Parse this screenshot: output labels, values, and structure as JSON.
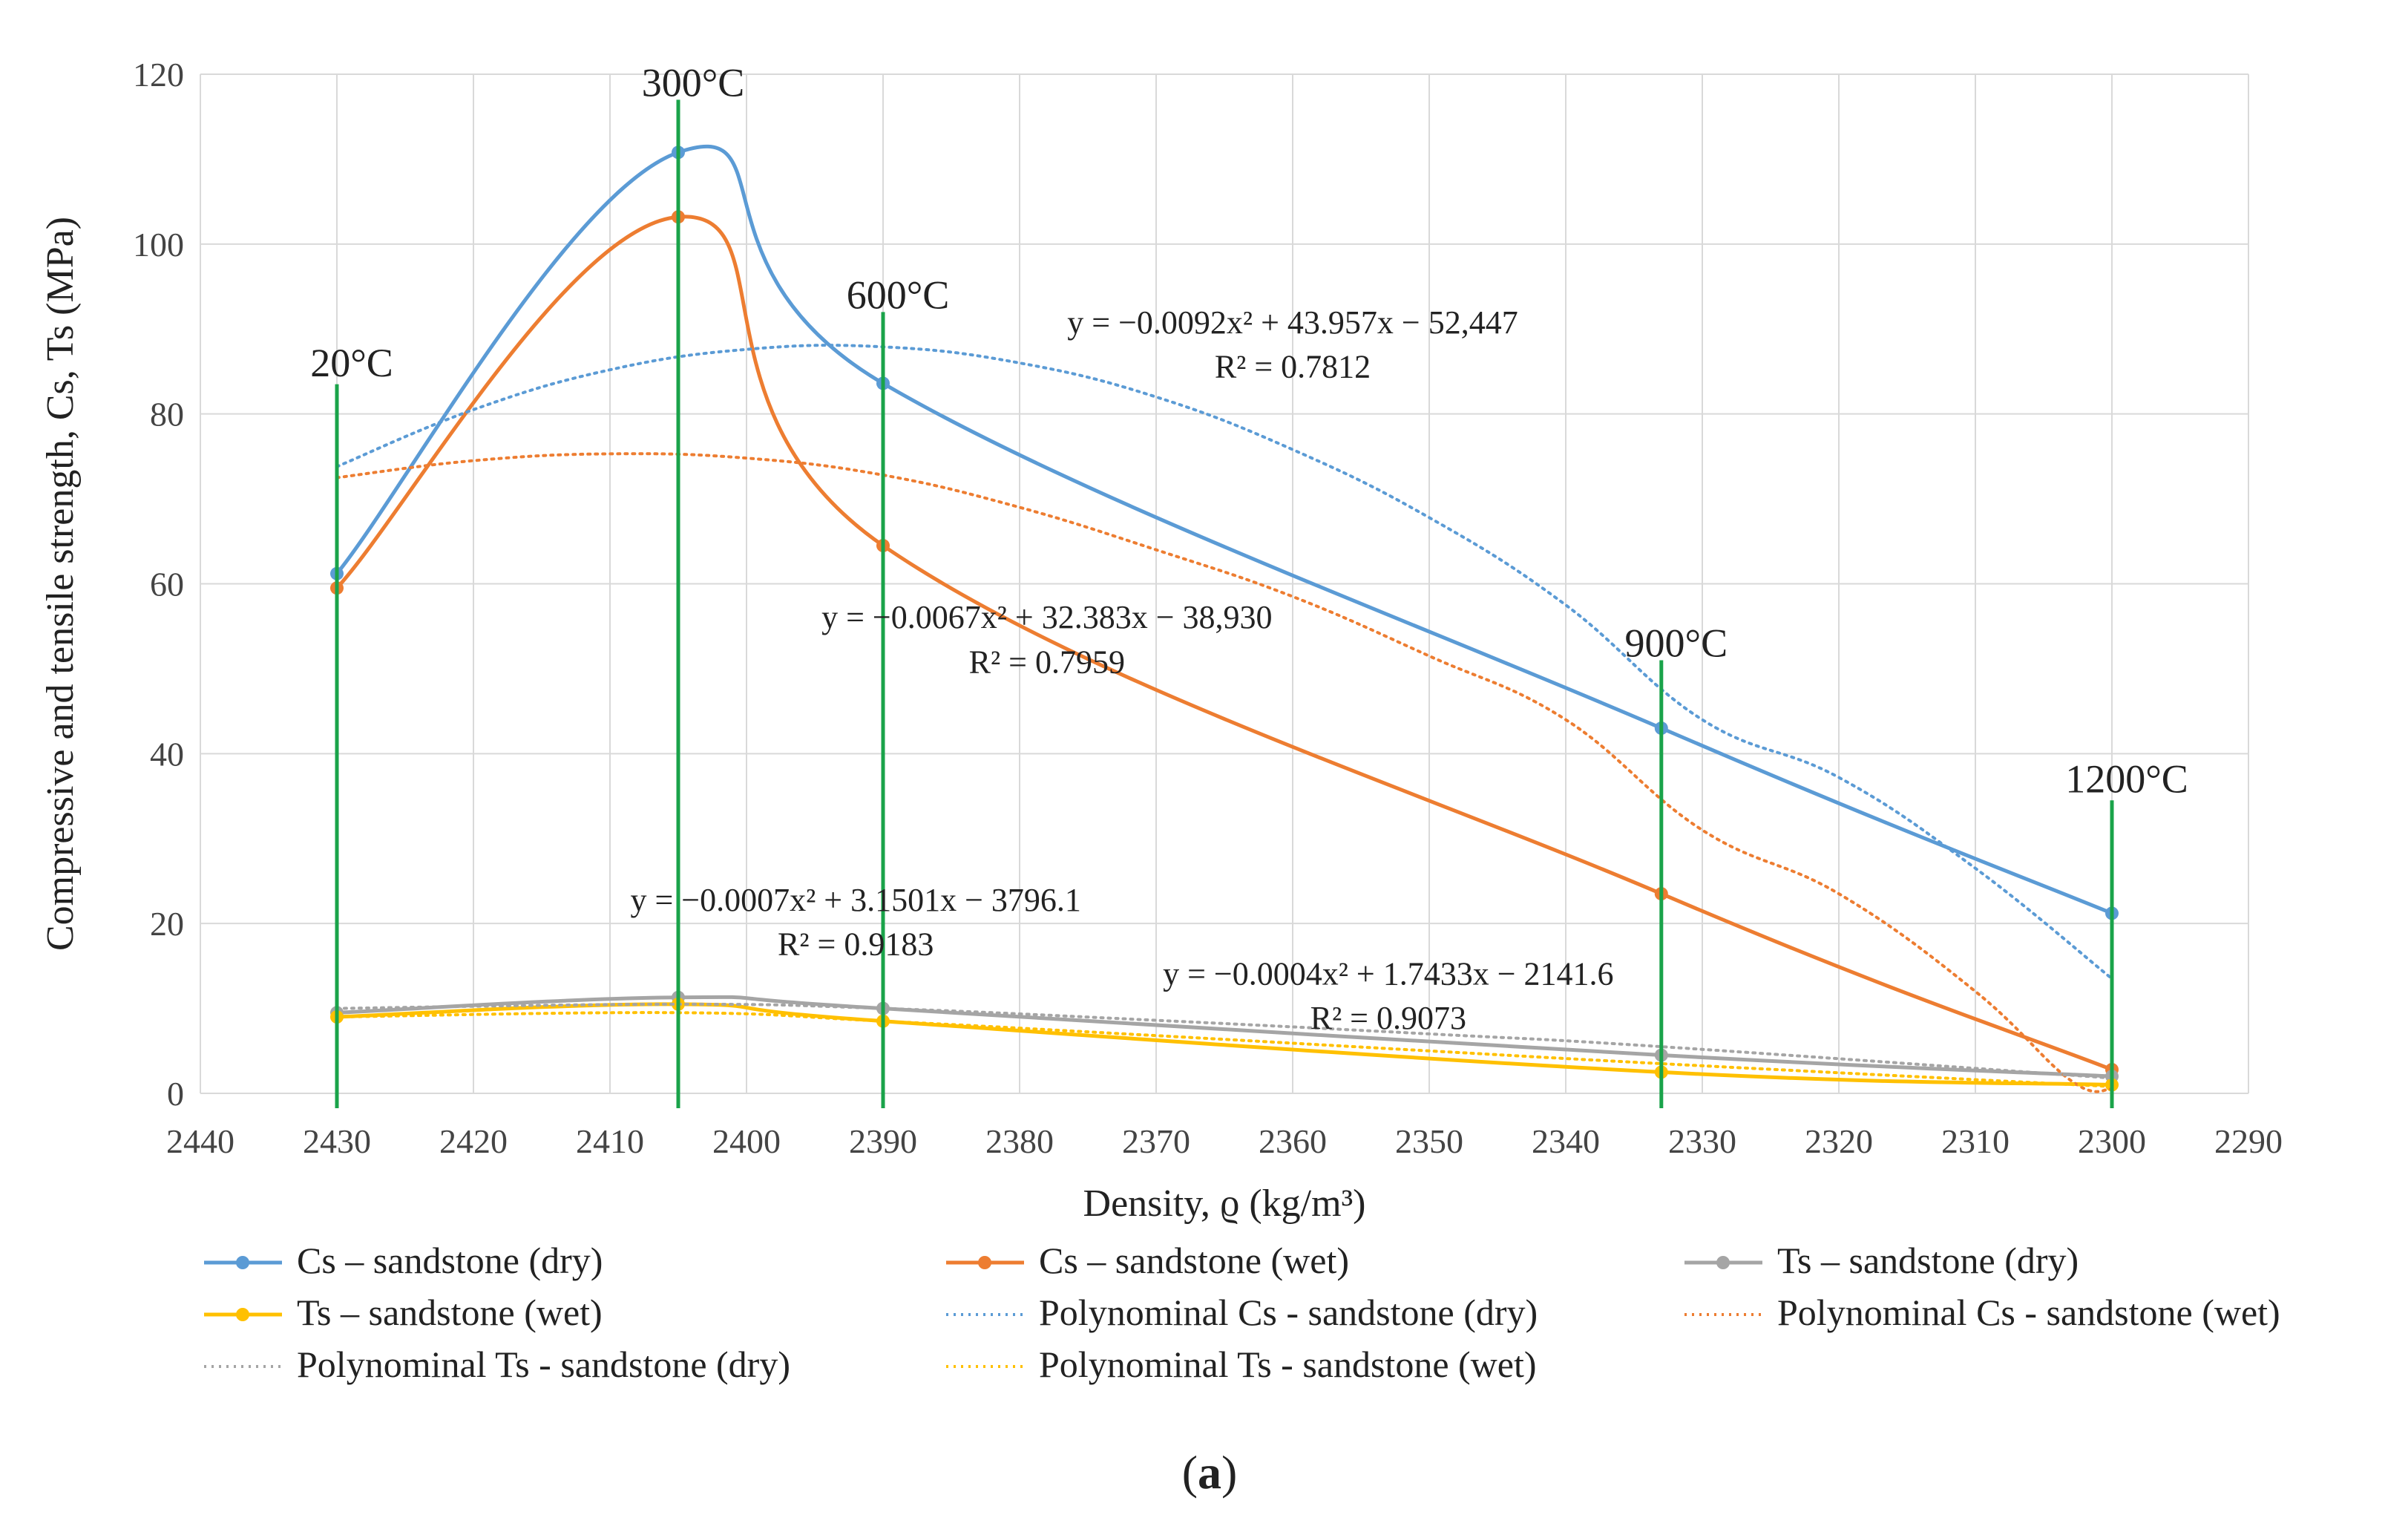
{
  "chart_data": {
    "type": "line",
    "xlabel": "Density, ϱ (kg/m³)",
    "ylabel": "Compressive and tensile strength, Cs, Ts (MPa)",
    "xlim": [
      2440,
      2290
    ],
    "x_reversed": true,
    "ylim": [
      0,
      120
    ],
    "x_ticks": [
      2440,
      2430,
      2420,
      2410,
      2400,
      2390,
      2380,
      2370,
      2360,
      2350,
      2340,
      2330,
      2320,
      2310,
      2300,
      2290
    ],
    "y_ticks": [
      0,
      20,
      40,
      60,
      80,
      100,
      120
    ],
    "grid": true,
    "temperatures": [
      {
        "label": "20°C",
        "x": 2430,
        "top": 83.5,
        "label_y": 86
      },
      {
        "label": "300°C",
        "x": 2405,
        "top": 117,
        "label_y": 119
      },
      {
        "label": "600°C",
        "x": 2390,
        "top": 92,
        "label_y": 94
      },
      {
        "label": "900°C",
        "x": 2333,
        "top": 51,
        "label_y": 53
      },
      {
        "label": "1200°C",
        "x": 2300,
        "top": 34.5,
        "label_y": 37
      }
    ],
    "series": [
      {
        "name": "Cs – sandstone (dry)",
        "color": "#5b9bd5",
        "style": "solid",
        "x": [
          2430,
          2405,
          2390,
          2333,
          2300
        ],
        "values": [
          61.2,
          110.8,
          83.6,
          43.0,
          21.2
        ]
      },
      {
        "name": "Cs – sandstone (wet)",
        "color": "#ed7d31",
        "style": "solid",
        "x": [
          2430,
          2405,
          2390,
          2333,
          2300
        ],
        "values": [
          59.5,
          103.2,
          64.5,
          23.5,
          2.8
        ]
      },
      {
        "name": "Ts – sandstone (dry)",
        "color": "#a5a5a5",
        "style": "solid",
        "x": [
          2430,
          2405,
          2390,
          2333,
          2300
        ],
        "values": [
          9.5,
          11.3,
          10.0,
          4.5,
          2.0
        ]
      },
      {
        "name": "Ts – sandstone (wet)",
        "color": "#ffc000",
        "style": "solid",
        "x": [
          2430,
          2405,
          2390,
          2333,
          2300
        ],
        "values": [
          9.0,
          10.5,
          8.5,
          2.5,
          1.0
        ]
      },
      {
        "name": "Polynominal Cs - sandstone (dry)",
        "color": "#5b9bd5",
        "style": "dotted",
        "x": [
          2430,
          2420,
          2410,
          2400,
          2390,
          2380,
          2370,
          2360,
          2350,
          2340,
          2330,
          2320,
          2310,
          2300
        ],
        "values": [
          73.8,
          80.5,
          85.2,
          87.6,
          87.9,
          86.0,
          82.0,
          75.8,
          67.8,
          57.5,
          44.0,
          37.2,
          26.5,
          13.5
        ]
      },
      {
        "name": "Polynominal Cs - sandstone (wet)",
        "color": "#ed7d31",
        "style": "dotted",
        "x": [
          2430,
          2420,
          2410,
          2400,
          2390,
          2380,
          2370,
          2360,
          2350,
          2340,
          2330,
          2320,
          2310,
          2303,
          2300
        ],
        "values": [
          72.5,
          74.5,
          75.3,
          74.8,
          72.8,
          69.0,
          64.0,
          58.5,
          51.5,
          44.0,
          31.0,
          23.5,
          12.0,
          1.5,
          0.5
        ]
      },
      {
        "name": "Polynominal Ts - sandstone (dry)",
        "color": "#a5a5a5",
        "style": "dotted",
        "x": [
          2430,
          2405,
          2390,
          2370,
          2350,
          2333,
          2300
        ],
        "values": [
          10.0,
          10.5,
          10.0,
          8.6,
          7.0,
          5.5,
          1.8
        ]
      },
      {
        "name": "Polynominal Ts - sandstone (wet)",
        "color": "#ffc000",
        "style": "dotted",
        "x": [
          2430,
          2405,
          2390,
          2370,
          2350,
          2333,
          2300
        ],
        "values": [
          9.0,
          9.5,
          8.5,
          6.8,
          5.0,
          3.5,
          0.8
        ]
      }
    ],
    "annotations": [
      {
        "text": "y = −0.0092x² + 43.957x − 52,447",
        "x": 2360,
        "y": 89.5
      },
      {
        "text": "R² = 0.7812",
        "x": 2360,
        "y": 84.3
      },
      {
        "text": "y = −0.0067x² + 32.383x − 38,930",
        "x": 2378,
        "y": 54.8
      },
      {
        "text": "R² = 0.7959",
        "x": 2378,
        "y": 49.5
      },
      {
        "text": "y = −0.0007x² + 3.1501x − 3796.1",
        "x": 2392,
        "y": 21.5
      },
      {
        "text": "R² = 0.9183",
        "x": 2392,
        "y": 16.3
      },
      {
        "text": "y = −0.0004x² + 1.7433x − 2141.6",
        "x": 2353,
        "y": 12.8
      },
      {
        "text": "R² = 0.9073",
        "x": 2353,
        "y": 7.6
      }
    ],
    "legend": "bottom"
  },
  "caption": {
    "open": "(",
    "letter": "a",
    "close": ")"
  }
}
